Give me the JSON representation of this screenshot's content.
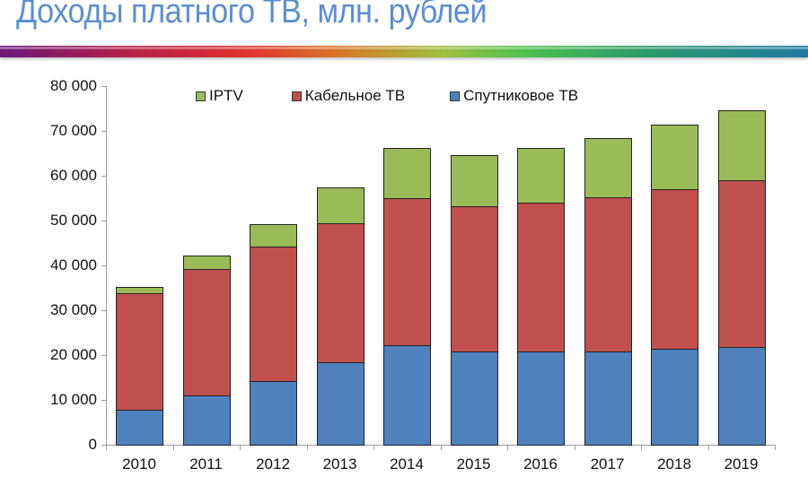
{
  "header": {
    "title": "Доходы платного ТВ, млн. рублей"
  },
  "colors": {
    "title": "#5b8fd0",
    "iptv": "#9bbb59",
    "cable": "#c0504d",
    "satellite": "#4f81bd"
  },
  "legend": {
    "items": [
      {
        "label": "IPTV",
        "color": "#9bbb59"
      },
      {
        "label": "Кабельное ТВ",
        "color": "#c0504d"
      },
      {
        "label": "Спутниковое ТВ",
        "color": "#4f81bd"
      }
    ]
  },
  "axis": {
    "y_ticks": [
      "0",
      "10 000",
      "20 000",
      "30 000",
      "40 000",
      "50 000",
      "60 000",
      "70 000",
      "80 000"
    ],
    "x_ticks": [
      "2010",
      "2011",
      "2012",
      "2013",
      "2014",
      "2015",
      "2016",
      "2017",
      "2018",
      "2019"
    ]
  },
  "chart_data": {
    "type": "bar",
    "stacked": true,
    "title": "Доходы платного ТВ, млн. рублей",
    "xlabel": "",
    "ylabel": "",
    "ylim": [
      0,
      80000
    ],
    "grid": false,
    "legend_position": "top",
    "categories": [
      "2010",
      "2011",
      "2012",
      "2013",
      "2014",
      "2015",
      "2016",
      "2017",
      "2018",
      "2019"
    ],
    "series": [
      {
        "name": "Спутниковое ТВ",
        "color": "#4f81bd",
        "values": [
          7800,
          11100,
          14300,
          18400,
          22300,
          20900,
          20900,
          20900,
          21400,
          21900
        ]
      },
      {
        "name": "Кабельное ТВ",
        "color": "#c0504d",
        "values": [
          26100,
          28200,
          30000,
          31100,
          32700,
          32300,
          33200,
          34400,
          35700,
          37200
        ]
      },
      {
        "name": "IPTV",
        "color": "#9bbb59",
        "values": [
          1300,
          3000,
          5000,
          7900,
          11300,
          11400,
          12200,
          13200,
          14400,
          15600
        ]
      }
    ],
    "totals": [
      35200,
      42300,
      49300,
      57400,
      66300,
      64600,
      66300,
      68500,
      71500,
      74700
    ]
  }
}
